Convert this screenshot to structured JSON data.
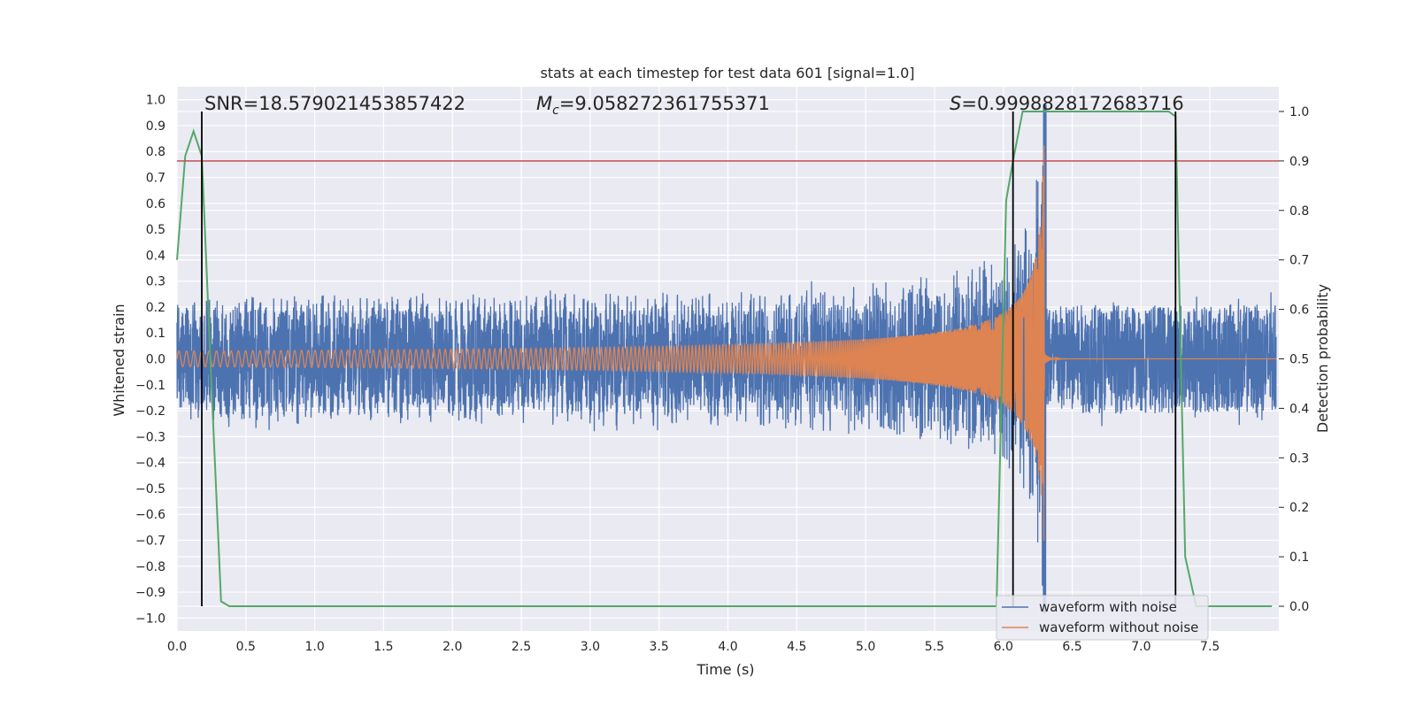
{
  "chart_data": {
    "type": "line",
    "title": "stats at each timestep for test data 601 [signal=1.0]",
    "xlabel": "Time (s)",
    "ylabel": "Whitened strain",
    "y2label": "Detection probability",
    "xlim": [
      0.0,
      8.0
    ],
    "ylim": [
      -1.05,
      1.05
    ],
    "y2lim": [
      -0.05,
      1.05
    ],
    "xticks": [
      0.0,
      0.5,
      1.0,
      1.5,
      2.0,
      2.5,
      3.0,
      3.5,
      4.0,
      4.5,
      5.0,
      5.5,
      6.0,
      6.5,
      7.0,
      7.5
    ],
    "xtick_labels": [
      "0.0",
      "0.5",
      "1.0",
      "1.5",
      "2.0",
      "2.5",
      "3.0",
      "3.5",
      "4.0",
      "4.5",
      "5.0",
      "5.5",
      "6.0",
      "6.5",
      "7.0",
      "7.5"
    ],
    "yticks": [
      1.0,
      0.9,
      0.8,
      0.7,
      0.6,
      0.5,
      0.4,
      0.3,
      0.2,
      0.1,
      0.0,
      -0.1,
      -0.2,
      -0.3,
      -0.4,
      -0.5,
      -0.6,
      -0.7,
      -0.8,
      -0.9,
      -1.0
    ],
    "ytick_labels": [
      "1.0",
      "0.9",
      "0.8",
      "0.7",
      "0.6",
      "0.5",
      "0.4",
      "0.3",
      "0.2",
      "0.1",
      "0.0",
      "−0.1",
      "−0.2",
      "−0.3",
      "−0.4",
      "−0.5",
      "−0.6",
      "−0.7",
      "−0.8",
      "−0.9",
      "−1.0"
    ],
    "y2ticks": [
      1.0,
      0.9,
      0.8,
      0.7,
      0.6,
      0.5,
      0.4,
      0.3,
      0.2,
      0.1,
      0.0
    ],
    "y2tick_labels": [
      "1.0",
      "0.9",
      "0.8",
      "0.7",
      "0.6",
      "0.5",
      "0.4",
      "0.3",
      "0.2",
      "0.1",
      "0.0"
    ],
    "annotations": {
      "snr": "SNR=18.579021453857422",
      "mc_symbol": "M",
      "mc_sub": "c",
      "mc_value": "=9.058272361755371",
      "s_symbol": "S",
      "s_value": "=0.9998828172683716"
    },
    "threshold": {
      "value": 0.9,
      "axis": "y2",
      "color": "#c44e52"
    },
    "vlines": [
      0.18,
      6.07,
      7.25
    ],
    "series": [
      {
        "name": "waveform with noise",
        "color": "#4c72b0",
        "noise_amplitude": 0.21,
        "chirp_peak_time": 6.3,
        "description_values": "noisy whitened strain around zero, amplitude ~0.2, growing chirp near 5.5-6.3 s"
      },
      {
        "name": "waveform without noise",
        "color": "#dd8452",
        "start_amplitude": 0.03,
        "end_amplitude": 0.9,
        "merger_time": 6.3
      },
      {
        "name": "detection probability",
        "color": "#55a868",
        "axis": "y2",
        "x": [
          0.0,
          0.06,
          0.12,
          0.18,
          0.25,
          0.32,
          0.38,
          0.45,
          5.95,
          6.02,
          6.07,
          6.14,
          6.2,
          7.2,
          7.25,
          7.32,
          7.4,
          7.95
        ],
        "y": [
          0.7,
          0.91,
          0.96,
          0.91,
          0.45,
          0.01,
          0.0,
          0.0,
          0.0,
          0.82,
          0.9,
          1.0,
          1.0,
          1.0,
          0.99,
          0.1,
          0.0,
          0.0
        ]
      }
    ],
    "legend": {
      "position": "bottom-right",
      "entries": [
        {
          "label": "waveform with noise",
          "color": "#4c72b0"
        },
        {
          "label": "waveform without noise",
          "color": "#dd8452"
        }
      ]
    },
    "background_color": "#eaeaf2",
    "grid": true
  }
}
